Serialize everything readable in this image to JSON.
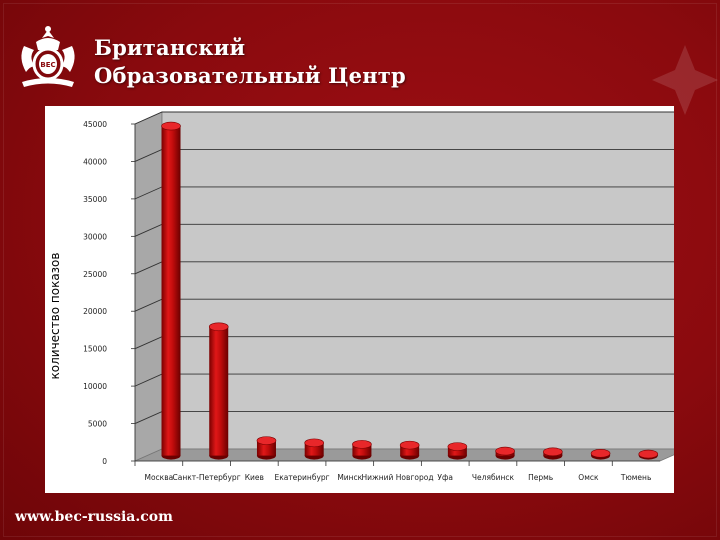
{
  "brand": {
    "line1": "Британский",
    "line2": "Образовательный Центр",
    "logo_text": "BEC"
  },
  "footer": {
    "url": "www.bec-russia.com"
  },
  "colors": {
    "background": "#8a0a0e",
    "bar": "#cc1111",
    "bar_dark": "#8a0000",
    "plot_wall": "#c8c8c8"
  },
  "chart_data": {
    "type": "bar",
    "categories": [
      "Москва",
      "Санкт-Петербург",
      "Киев",
      "Екатеринбург",
      "Минск",
      "Нижний Новгород",
      "Уфа",
      "Челябинск",
      "Пермь",
      "Омск",
      "Тюмень"
    ],
    "values": [
      44000,
      17200,
      2000,
      1700,
      1500,
      1400,
      1200,
      600,
      500,
      300,
      200
    ],
    "title": "",
    "xlabel": "",
    "ylabel": "количество показов",
    "ylim": [
      0,
      45000
    ],
    "yticks": [
      0,
      5000,
      10000,
      15000,
      20000,
      25000,
      30000,
      35000,
      40000,
      45000
    ],
    "grid": true,
    "legend": "none"
  }
}
